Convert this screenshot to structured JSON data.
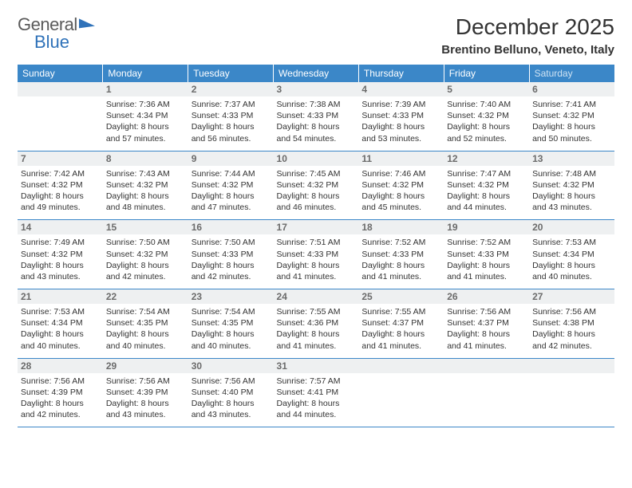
{
  "logo": {
    "text1": "General",
    "text2": "Blue"
  },
  "title": "December 2025",
  "location": "Brentino Belluno, Veneto, Italy",
  "header_bg": "#3b87c8",
  "daynum_bg": "#eef0f1",
  "rule_color": "#3b87c8",
  "weekdays": [
    "Sunday",
    "Monday",
    "Tuesday",
    "Wednesday",
    "Thursday",
    "Friday",
    "Saturday"
  ],
  "weeks": [
    [
      {
        "n": "",
        "sunrise": "",
        "sunset": "",
        "daylight": ""
      },
      {
        "n": "1",
        "sunrise": "Sunrise: 7:36 AM",
        "sunset": "Sunset: 4:34 PM",
        "daylight": "Daylight: 8 hours and 57 minutes."
      },
      {
        "n": "2",
        "sunrise": "Sunrise: 7:37 AM",
        "sunset": "Sunset: 4:33 PM",
        "daylight": "Daylight: 8 hours and 56 minutes."
      },
      {
        "n": "3",
        "sunrise": "Sunrise: 7:38 AM",
        "sunset": "Sunset: 4:33 PM",
        "daylight": "Daylight: 8 hours and 54 minutes."
      },
      {
        "n": "4",
        "sunrise": "Sunrise: 7:39 AM",
        "sunset": "Sunset: 4:33 PM",
        "daylight": "Daylight: 8 hours and 53 minutes."
      },
      {
        "n": "5",
        "sunrise": "Sunrise: 7:40 AM",
        "sunset": "Sunset: 4:32 PM",
        "daylight": "Daylight: 8 hours and 52 minutes."
      },
      {
        "n": "6",
        "sunrise": "Sunrise: 7:41 AM",
        "sunset": "Sunset: 4:32 PM",
        "daylight": "Daylight: 8 hours and 50 minutes."
      }
    ],
    [
      {
        "n": "7",
        "sunrise": "Sunrise: 7:42 AM",
        "sunset": "Sunset: 4:32 PM",
        "daylight": "Daylight: 8 hours and 49 minutes."
      },
      {
        "n": "8",
        "sunrise": "Sunrise: 7:43 AM",
        "sunset": "Sunset: 4:32 PM",
        "daylight": "Daylight: 8 hours and 48 minutes."
      },
      {
        "n": "9",
        "sunrise": "Sunrise: 7:44 AM",
        "sunset": "Sunset: 4:32 PM",
        "daylight": "Daylight: 8 hours and 47 minutes."
      },
      {
        "n": "10",
        "sunrise": "Sunrise: 7:45 AM",
        "sunset": "Sunset: 4:32 PM",
        "daylight": "Daylight: 8 hours and 46 minutes."
      },
      {
        "n": "11",
        "sunrise": "Sunrise: 7:46 AM",
        "sunset": "Sunset: 4:32 PM",
        "daylight": "Daylight: 8 hours and 45 minutes."
      },
      {
        "n": "12",
        "sunrise": "Sunrise: 7:47 AM",
        "sunset": "Sunset: 4:32 PM",
        "daylight": "Daylight: 8 hours and 44 minutes."
      },
      {
        "n": "13",
        "sunrise": "Sunrise: 7:48 AM",
        "sunset": "Sunset: 4:32 PM",
        "daylight": "Daylight: 8 hours and 43 minutes."
      }
    ],
    [
      {
        "n": "14",
        "sunrise": "Sunrise: 7:49 AM",
        "sunset": "Sunset: 4:32 PM",
        "daylight": "Daylight: 8 hours and 43 minutes."
      },
      {
        "n": "15",
        "sunrise": "Sunrise: 7:50 AM",
        "sunset": "Sunset: 4:32 PM",
        "daylight": "Daylight: 8 hours and 42 minutes."
      },
      {
        "n": "16",
        "sunrise": "Sunrise: 7:50 AM",
        "sunset": "Sunset: 4:33 PM",
        "daylight": "Daylight: 8 hours and 42 minutes."
      },
      {
        "n": "17",
        "sunrise": "Sunrise: 7:51 AM",
        "sunset": "Sunset: 4:33 PM",
        "daylight": "Daylight: 8 hours and 41 minutes."
      },
      {
        "n": "18",
        "sunrise": "Sunrise: 7:52 AM",
        "sunset": "Sunset: 4:33 PM",
        "daylight": "Daylight: 8 hours and 41 minutes."
      },
      {
        "n": "19",
        "sunrise": "Sunrise: 7:52 AM",
        "sunset": "Sunset: 4:33 PM",
        "daylight": "Daylight: 8 hours and 41 minutes."
      },
      {
        "n": "20",
        "sunrise": "Sunrise: 7:53 AM",
        "sunset": "Sunset: 4:34 PM",
        "daylight": "Daylight: 8 hours and 40 minutes."
      }
    ],
    [
      {
        "n": "21",
        "sunrise": "Sunrise: 7:53 AM",
        "sunset": "Sunset: 4:34 PM",
        "daylight": "Daylight: 8 hours and 40 minutes."
      },
      {
        "n": "22",
        "sunrise": "Sunrise: 7:54 AM",
        "sunset": "Sunset: 4:35 PM",
        "daylight": "Daylight: 8 hours and 40 minutes."
      },
      {
        "n": "23",
        "sunrise": "Sunrise: 7:54 AM",
        "sunset": "Sunset: 4:35 PM",
        "daylight": "Daylight: 8 hours and 40 minutes."
      },
      {
        "n": "24",
        "sunrise": "Sunrise: 7:55 AM",
        "sunset": "Sunset: 4:36 PM",
        "daylight": "Daylight: 8 hours and 41 minutes."
      },
      {
        "n": "25",
        "sunrise": "Sunrise: 7:55 AM",
        "sunset": "Sunset: 4:37 PM",
        "daylight": "Daylight: 8 hours and 41 minutes."
      },
      {
        "n": "26",
        "sunrise": "Sunrise: 7:56 AM",
        "sunset": "Sunset: 4:37 PM",
        "daylight": "Daylight: 8 hours and 41 minutes."
      },
      {
        "n": "27",
        "sunrise": "Sunrise: 7:56 AM",
        "sunset": "Sunset: 4:38 PM",
        "daylight": "Daylight: 8 hours and 42 minutes."
      }
    ],
    [
      {
        "n": "28",
        "sunrise": "Sunrise: 7:56 AM",
        "sunset": "Sunset: 4:39 PM",
        "daylight": "Daylight: 8 hours and 42 minutes."
      },
      {
        "n": "29",
        "sunrise": "Sunrise: 7:56 AM",
        "sunset": "Sunset: 4:39 PM",
        "daylight": "Daylight: 8 hours and 43 minutes."
      },
      {
        "n": "30",
        "sunrise": "Sunrise: 7:56 AM",
        "sunset": "Sunset: 4:40 PM",
        "daylight": "Daylight: 8 hours and 43 minutes."
      },
      {
        "n": "31",
        "sunrise": "Sunrise: 7:57 AM",
        "sunset": "Sunset: 4:41 PM",
        "daylight": "Daylight: 8 hours and 44 minutes."
      },
      {
        "n": "",
        "sunrise": "",
        "sunset": "",
        "daylight": ""
      },
      {
        "n": "",
        "sunrise": "",
        "sunset": "",
        "daylight": ""
      },
      {
        "n": "",
        "sunrise": "",
        "sunset": "",
        "daylight": ""
      }
    ]
  ]
}
